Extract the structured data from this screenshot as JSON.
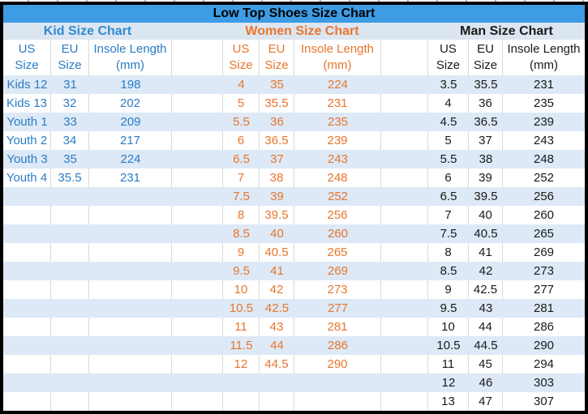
{
  "title": "Low Top Shoes Size Chart",
  "sections": {
    "kid": {
      "label": "Kid Size Chart"
    },
    "women": {
      "label": "Women Size Chart"
    },
    "man": {
      "label": "Man Size Chart"
    }
  },
  "column_headers": {
    "kid": {
      "us": "US Size",
      "eu": "EU Size",
      "insole": "Insole Length (mm)"
    },
    "women": {
      "us": "US Size",
      "eu": "EU Size",
      "insole": "Insole Length (mm)"
    },
    "man": {
      "us": "US Size",
      "eu": "EU Size",
      "insole": "Insole Length (mm)"
    }
  },
  "colors": {
    "title_bar_bg": "#3D9CE4",
    "header_row_bg": "#DCE6F1",
    "band_bg": "#DDE9F6",
    "gridline": "#D9D9D9",
    "kid_text": "#2B7CC5",
    "kid_heading": "#2E8BD2",
    "women_text": "#E8762C",
    "man_text": "#1A1A1A",
    "border": "#000000"
  },
  "chart_data": {
    "type": "table",
    "title": "Low Top Shoes Size Chart",
    "tables": [
      {
        "name": "Kid Size Chart",
        "columns": [
          "US Size",
          "EU Size",
          "Insole Length (mm)"
        ],
        "rows": [
          [
            "Kids 12",
            "31",
            "198"
          ],
          [
            "Kids 13",
            "32",
            "202"
          ],
          [
            "Youth 1",
            "33",
            "209"
          ],
          [
            "Youth 2",
            "34",
            "217"
          ],
          [
            "Youth 3",
            "35",
            "224"
          ],
          [
            "Youth 4",
            "35.5",
            "231"
          ]
        ]
      },
      {
        "name": "Women Size Chart",
        "columns": [
          "US Size",
          "EU Size",
          "Insole Length (mm)"
        ],
        "rows": [
          [
            "4",
            "35",
            "224"
          ],
          [
            "5",
            "35.5",
            "231"
          ],
          [
            "5.5",
            "36",
            "235"
          ],
          [
            "6",
            "36.5",
            "239"
          ],
          [
            "6.5",
            "37",
            "243"
          ],
          [
            "7",
            "38",
            "248"
          ],
          [
            "7.5",
            "39",
            "252"
          ],
          [
            "8",
            "39.5",
            "256"
          ],
          [
            "8.5",
            "40",
            "260"
          ],
          [
            "9",
            "40.5",
            "265"
          ],
          [
            "9.5",
            "41",
            "269"
          ],
          [
            "10",
            "42",
            "273"
          ],
          [
            "10.5",
            "42.5",
            "277"
          ],
          [
            "11",
            "43",
            "281"
          ],
          [
            "11.5",
            "44",
            "286"
          ],
          [
            "12",
            "44.5",
            "290"
          ]
        ]
      },
      {
        "name": "Man Size Chart",
        "columns": [
          "US Size",
          "EU Size",
          "Insole Length (mm)"
        ],
        "rows": [
          [
            "3.5",
            "35.5",
            "231"
          ],
          [
            "4",
            "36",
            "235"
          ],
          [
            "4.5",
            "36.5",
            "239"
          ],
          [
            "5",
            "37",
            "243"
          ],
          [
            "5.5",
            "38",
            "248"
          ],
          [
            "6",
            "39",
            "252"
          ],
          [
            "6.5",
            "39.5",
            "256"
          ],
          [
            "7",
            "40",
            "260"
          ],
          [
            "7.5",
            "40.5",
            "265"
          ],
          [
            "8",
            "41",
            "269"
          ],
          [
            "8.5",
            "42",
            "273"
          ],
          [
            "9",
            "42.5",
            "277"
          ],
          [
            "9.5",
            "43",
            "281"
          ],
          [
            "10",
            "44",
            "286"
          ],
          [
            "10.5",
            "44.5",
            "290"
          ],
          [
            "11",
            "45",
            "294"
          ],
          [
            "12",
            "46",
            "303"
          ],
          [
            "13",
            "47",
            "307"
          ]
        ]
      }
    ]
  }
}
